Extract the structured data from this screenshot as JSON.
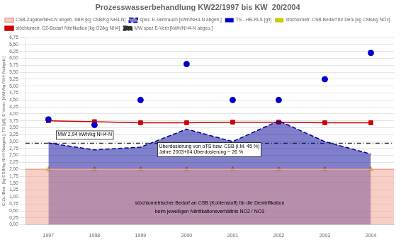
{
  "chart_data": {
    "type": "line",
    "title": "Prozesswasserbehandlung KW22/1997 bis KW  20/2004",
    "ylabel": "C-Zu./Bed. [kg CSB/kg NH4-Nabgeb.], TS [g/l], E-Verbr. [kWh/kg NH4-Nabgeb.]",
    "x": [
      1997,
      1998,
      1999,
      2000,
      2001,
      2002,
      2003,
      2004
    ],
    "xlim": [
      1996.5,
      2004.5
    ],
    "xticks": [
      1997,
      1998,
      1999,
      2000,
      2001,
      2002,
      2003,
      2004
    ],
    "ylim": [
      0,
      6.75
    ],
    "yticks": [
      {
        "value": 0,
        "label": "0,00"
      },
      {
        "value": 0.25,
        "label": "0,25"
      },
      {
        "value": 0.5,
        "label": "0,50"
      },
      {
        "value": 0.75,
        "label": "0,75"
      },
      {
        "value": 1,
        "label": "1,00"
      },
      {
        "value": 1.25,
        "label": "1,25"
      },
      {
        "value": 1.5,
        "label": "1,50"
      },
      {
        "value": 1.75,
        "label": "1,75"
      },
      {
        "value": 2,
        "label": "2,00"
      },
      {
        "value": 2.25,
        "label": "2,25"
      },
      {
        "value": 2.5,
        "label": "2,50"
      },
      {
        "value": 2.75,
        "label": "2,75"
      },
      {
        "value": 3,
        "label": "3,00"
      },
      {
        "value": 3.25,
        "label": "3,25"
      },
      {
        "value": 3.5,
        "label": "3,50"
      },
      {
        "value": 3.75,
        "label": "3,75"
      },
      {
        "value": 4,
        "label": "4,00"
      },
      {
        "value": 4.25,
        "label": "4,25"
      },
      {
        "value": 4.5,
        "label": "4,50"
      },
      {
        "value": 4.75,
        "label": "4,75"
      },
      {
        "value": 5,
        "label": "5,00"
      },
      {
        "value": 5.25,
        "label": "5,25"
      },
      {
        "value": 5.5,
        "label": "5,50"
      },
      {
        "value": 5.75,
        "label": "5,75"
      },
      {
        "value": 6,
        "label": "6,00"
      },
      {
        "value": 6.25,
        "label": "6,25"
      },
      {
        "value": 6.5,
        "label": "6,50"
      },
      {
        "value": 6.75,
        "label": "6,75"
      }
    ],
    "grid": "y",
    "legend": "upper left",
    "series": [
      {
        "name": "CSB-Zugabe/NH4-N abgeb. SBR [kg CSB/Kg NH4-N]",
        "type": "area",
        "color": "#F0A090",
        "x": [
          1996.5,
          2004.5
        ],
        "values": [
          2.0,
          2.0
        ]
      },
      {
        "name": "spez. E-Verbrauch [kWh/NH4-N abgeb.]",
        "type": "area",
        "color": "#000099",
        "line_style": "dashed",
        "values": [
          2.95,
          2.7,
          2.8,
          3.45,
          3.0,
          3.75,
          3.0,
          2.55
        ]
      },
      {
        "name": "TS - HB-RLS [g/l]",
        "type": "scatter",
        "color": "#0000CC",
        "marker": "circle",
        "values": [
          3.8,
          3.6,
          4.5,
          5.8,
          4.5,
          4.5,
          5.25,
          6.2
        ]
      },
      {
        "name": "stöchiometr. CSB-Bedarf für Deni [kg CSB/kg NOx]",
        "type": "scatter",
        "color": "#CCCC00",
        "marker": "triangle",
        "values": [
          2.0,
          2.0,
          2.0,
          2.0,
          2.0,
          2.0,
          2.0,
          2.0
        ]
      },
      {
        "name": "stöchiometr. O2-Bedarf Nitrifikation [kg O2/kg NH4]",
        "type": "line",
        "color": "#CC0000",
        "marker": "square",
        "values": [
          3.75,
          3.72,
          3.68,
          3.68,
          3.7,
          3.7,
          3.68,
          3.68
        ]
      },
      {
        "name": "MW spez E-Verb [kWh/NH4-N abgeo.]",
        "type": "line",
        "color": "#333333",
        "line_style": "dashdot",
        "x": [
          1996.5,
          2004.5
        ],
        "values": [
          2.94,
          2.94
        ]
      }
    ],
    "annotations": [
      {
        "text": "MW 2,94 kWh/kg NH4-N",
        "x": 1997.2,
        "y": 3.08,
        "box": true
      },
      {
        "text": "Überdosierung von oTS bzw. CSB (i.M. 45 %)\nJahre 2003+04 Überdosierung ~ 26 %",
        "x": 1999.4,
        "y": 2.45,
        "box": true
      },
      {
        "text": "stöchiometrischer Bedarf an CSB (Kohlenstoff) für die Denitrifikation",
        "x": 2000.5,
        "y": 0.78,
        "box": false
      },
      {
        "text": "beim jeweiligen Nitrifikationsverhältnis NO2 / NO3",
        "x": 2000.5,
        "y": 0.48,
        "box": false
      }
    ]
  }
}
